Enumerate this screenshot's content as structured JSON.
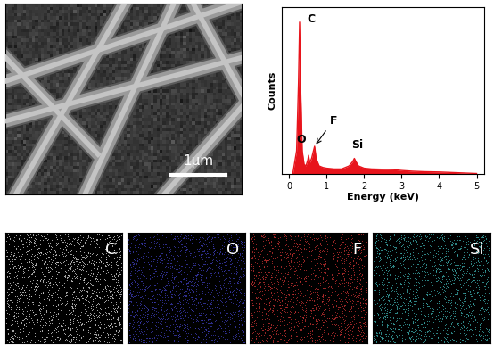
{
  "sem_image": {
    "scale_bar": "1μm"
  },
  "chart_data": {
    "type": "line",
    "x_label": "Energy (keV)",
    "y_label": "Counts",
    "x": [
      0.1,
      0.2,
      0.25,
      0.28,
      0.31,
      0.35,
      0.4,
      0.45,
      0.5,
      0.52,
      0.55,
      0.6,
      0.65,
      0.68,
      0.72,
      0.8,
      0.9,
      1.0,
      1.2,
      1.4,
      1.6,
      1.7,
      1.74,
      1.78,
      1.85,
      2.0,
      2.2,
      2.5,
      2.8,
      3.0,
      3.3,
      3.6,
      4.0,
      4.5,
      5.0
    ],
    "values": [
      0,
      0.15,
      0.6,
      1.0,
      0.55,
      0.15,
      0.06,
      0.05,
      0.09,
      0.12,
      0.07,
      0.1,
      0.15,
      0.18,
      0.1,
      0.05,
      0.04,
      0.035,
      0.03,
      0.03,
      0.05,
      0.08,
      0.1,
      0.08,
      0.05,
      0.035,
      0.03,
      0.028,
      0.025,
      0.02,
      0.015,
      0.012,
      0.01,
      0.005,
      0.0
    ],
    "color": "#e8141c",
    "xlim": [
      -0.2,
      5.2
    ],
    "xticks": [
      0,
      1,
      2,
      3,
      4,
      5
    ],
    "ylim": [
      0,
      1.1
    ],
    "tick_labels": "x",
    "annotations": [
      {
        "text": "C",
        "x": 0.28,
        "y": 1.0
      },
      {
        "text": "O",
        "x": 0.52,
        "y": 0.12
      },
      {
        "text": "F",
        "x": 0.68,
        "y": 0.18
      },
      {
        "text": "Si",
        "x": 1.74,
        "y": 0.1
      }
    ]
  },
  "maps": [
    {
      "label": "C",
      "color": "#d0d0d0"
    },
    {
      "label": "O",
      "color": "#3a3ab0"
    },
    {
      "label": "F",
      "color": "#c03030"
    },
    {
      "label": "Si",
      "color": "#3aa6a6"
    }
  ]
}
